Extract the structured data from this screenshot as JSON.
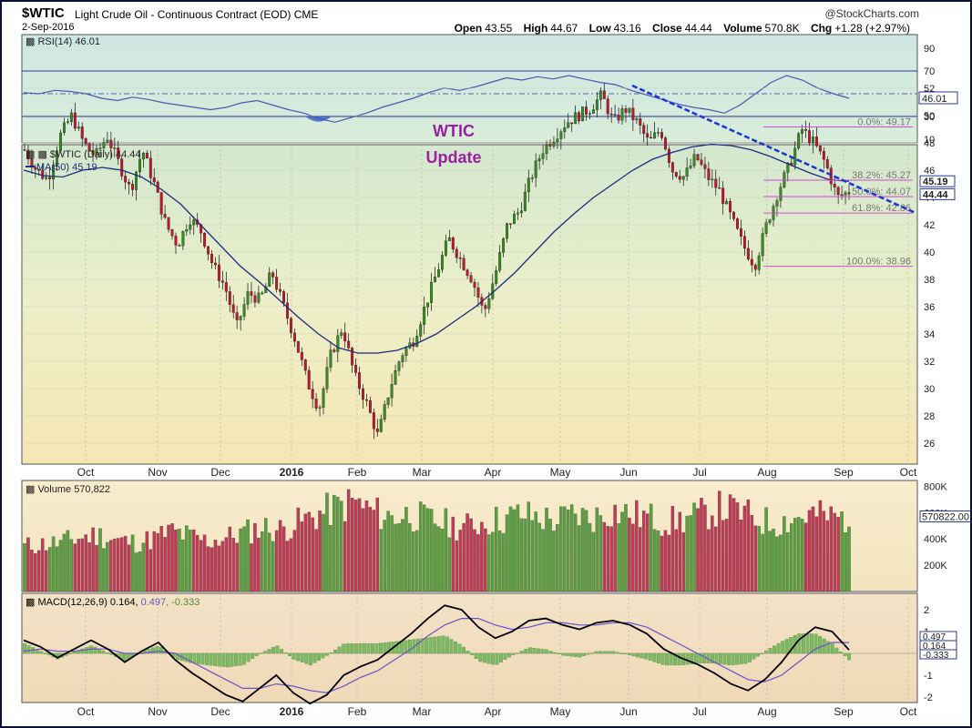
{
  "header": {
    "symbol": "$WTIC",
    "description": "Light Crude Oil - Continuous Contract (EOD)  CME",
    "date": "2-Sep-2016",
    "brand": "@StockCharts.com",
    "open_label": "Open",
    "open": "43.55",
    "high_label": "High",
    "high": "44.67",
    "low_label": "Low",
    "low": "43.16",
    "close_label": "Close",
    "close": "44.44",
    "volume_label": "Volume",
    "volume": "570.8K",
    "chg_label": "Chg",
    "chg": "+1.28 (+2.97%)"
  },
  "annotation": {
    "line1": "WTIC",
    "line2": "Update",
    "color": "#9b1fa0"
  },
  "colors": {
    "up": "#3a8a24",
    "down": "#c0172e",
    "ma": "#1c2b80",
    "rsi": "#4b58b0",
    "trend": "#1a35d6",
    "fib": "#d04bd0",
    "macd": "#000000",
    "signal": "#6a52c8"
  },
  "chart_data": {
    "type": "line",
    "x_months": [
      "Oct",
      "Nov",
      "Dec",
      "2016",
      "Feb",
      "Mar",
      "Apr",
      "May",
      "Jun",
      "Jul",
      "Aug",
      "Sep",
      "Oct"
    ],
    "price": {
      "legend_symbol": "$WTIC (Daily) 44.44",
      "legend_ma": "MA(50) 45.19",
      "y_ticks": [
        26,
        28,
        30,
        32,
        34,
        36,
        38,
        40,
        42,
        44,
        46,
        48,
        50,
        52
      ],
      "ylim": [
        25,
        53
      ],
      "close_series": [
        47.5,
        46.0,
        45.3,
        48.5,
        50.0,
        48.0,
        47.0,
        48.5,
        46.5,
        44.5,
        47.5,
        45.0,
        42.0,
        40.5,
        42.5,
        41.5,
        39.0,
        37.5,
        34.5,
        37.0,
        36.5,
        38.5,
        36.0,
        33.5,
        30.5,
        28.5,
        32.5,
        34.5,
        31.0,
        29.0,
        26.5,
        30.0,
        32.5,
        33.5,
        36.0,
        38.5,
        41.0,
        39.5,
        38.0,
        35.5,
        38.5,
        42.0,
        43.0,
        45.5,
        47.5,
        48.5,
        49.5,
        50.0,
        50.5,
        51.5,
        49.5,
        50.5,
        49.5,
        48.0,
        49.0,
        46.0,
        45.5,
        47.0,
        45.5,
        44.5,
        42.5,
        40.5,
        39.0,
        42.0,
        44.5,
        46.5,
        49.0,
        48.0,
        46.5,
        44.0,
        44.44
      ],
      "ma50_series": [
        46.0,
        45.6,
        45.5,
        46.0,
        46.2,
        46.0,
        45.5,
        44.6,
        43.5,
        42.0,
        40.5,
        39.0,
        37.8,
        36.5,
        35.2,
        34.0,
        33.0,
        32.6,
        32.6,
        32.8,
        33.3,
        34.0,
        35.0,
        36.0,
        37.2,
        38.5,
        40.0,
        41.5,
        42.8,
        44.0,
        45.0,
        46.0,
        46.8,
        47.3,
        47.7,
        47.9,
        47.8,
        47.5,
        47.0,
        46.4,
        45.8,
        45.3,
        45.19
      ],
      "trendline": {
        "from": [
          "Jun",
          52.2
        ],
        "to": [
          "Sep",
          42.8
        ]
      },
      "fibonacci": [
        {
          "label": "0.0%: 49.17",
          "value": 49.17
        },
        {
          "label": "38.2%: 45.27",
          "value": 45.27
        },
        {
          "label": "50.0%: 44.07",
          "value": 44.07
        },
        {
          "label": "61.8%: 42.86",
          "value": 42.86
        },
        {
          "label": "100.0%: 38.96",
          "value": 38.96
        }
      ],
      "right_badges": [
        {
          "text": "45.19",
          "value": 45.19
        },
        {
          "text": "44.44",
          "value": 44.44
        }
      ]
    },
    "rsi": {
      "legend": "RSI(14) 46.01",
      "y_ticks": [
        10,
        30,
        50,
        70,
        90
      ],
      "ylim": [
        0,
        100
      ],
      "overbought": 70,
      "oversold": 30,
      "mid": 50,
      "values": [
        51,
        50,
        53,
        52,
        50,
        46,
        44,
        47,
        45,
        42,
        40,
        38,
        36,
        38,
        42,
        44,
        40,
        36,
        33,
        28,
        25,
        29,
        33,
        38,
        42,
        46,
        51,
        55,
        53,
        56,
        60,
        64,
        62,
        65,
        63,
        66,
        63,
        60,
        58,
        53,
        49,
        45,
        41,
        38,
        36,
        33,
        40,
        50,
        60,
        66,
        62,
        55,
        50,
        46.01
      ],
      "badge": "46.01"
    },
    "volume": {
      "legend": "Volume 570,822",
      "y_ticks": [
        {
          "label": "200K",
          "value": 200000
        },
        {
          "label": "400K",
          "value": 400000
        },
        {
          "label": "600K",
          "value": 600000
        },
        {
          "label": "800K",
          "value": 800000
        }
      ],
      "ylim": [
        0,
        830000
      ],
      "badge": "570822.00",
      "values": [
        350000,
        370000,
        380000,
        420000,
        440000,
        400000,
        380000,
        410000,
        470000,
        430000,
        390000,
        420000,
        460000,
        500000,
        480000,
        540000,
        600000,
        650000,
        700000,
        620000,
        580000,
        600000,
        560000,
        530000,
        500000,
        540000,
        560000,
        600000,
        580000,
        550000,
        600000,
        570000,
        630000,
        600000,
        580000,
        540000,
        560000,
        600000,
        650000,
        620000,
        560000,
        530000,
        570000,
        600000,
        580000,
        570822
      ]
    },
    "macd": {
      "legend_name": "MACD(12,26,9)",
      "legend_macd": "0.164",
      "legend_signal": "0.497",
      "legend_hist": "-0.333",
      "y_ticks": [
        -2,
        -1,
        0,
        1,
        2
      ],
      "ylim": [
        -2.6,
        2.6
      ],
      "macd_values": [
        0.6,
        0.3,
        -0.2,
        0.2,
        0.6,
        0.2,
        -0.4,
        0.1,
        0.5,
        -0.3,
        -0.9,
        -1.4,
        -1.9,
        -2.2,
        -1.6,
        -1.0,
        -1.8,
        -2.3,
        -1.9,
        -1.0,
        -0.6,
        -0.3,
        0.3,
        0.9,
        1.6,
        2.2,
        2.0,
        1.2,
        0.7,
        1.0,
        1.5,
        1.6,
        1.3,
        1.1,
        1.4,
        1.5,
        1.3,
        0.9,
        0.2,
        -0.2,
        -0.5,
        -0.9,
        -1.4,
        -1.7,
        -1.2,
        -0.4,
        0.6,
        1.2,
        1.0,
        0.164
      ],
      "signal_values": [
        0.1,
        0.2,
        0.1,
        0.1,
        0.2,
        0.2,
        0.0,
        0.0,
        0.1,
        0.0,
        -0.4,
        -0.8,
        -1.2,
        -1.6,
        -1.6,
        -1.4,
        -1.5,
        -1.7,
        -1.8,
        -1.5,
        -1.1,
        -0.8,
        -0.3,
        0.2,
        0.8,
        1.3,
        1.6,
        1.6,
        1.3,
        1.1,
        1.2,
        1.4,
        1.4,
        1.3,
        1.3,
        1.4,
        1.4,
        1.2,
        0.8,
        0.4,
        0.0,
        -0.4,
        -0.8,
        -1.2,
        -1.3,
        -1.0,
        -0.4,
        0.2,
        0.5,
        0.497
      ],
      "badges": [
        {
          "text": "0.497",
          "value": 0.497
        },
        {
          "text": "0.164",
          "value": 0.164
        },
        {
          "text": "-0.333",
          "value": -0.333
        }
      ]
    }
  }
}
